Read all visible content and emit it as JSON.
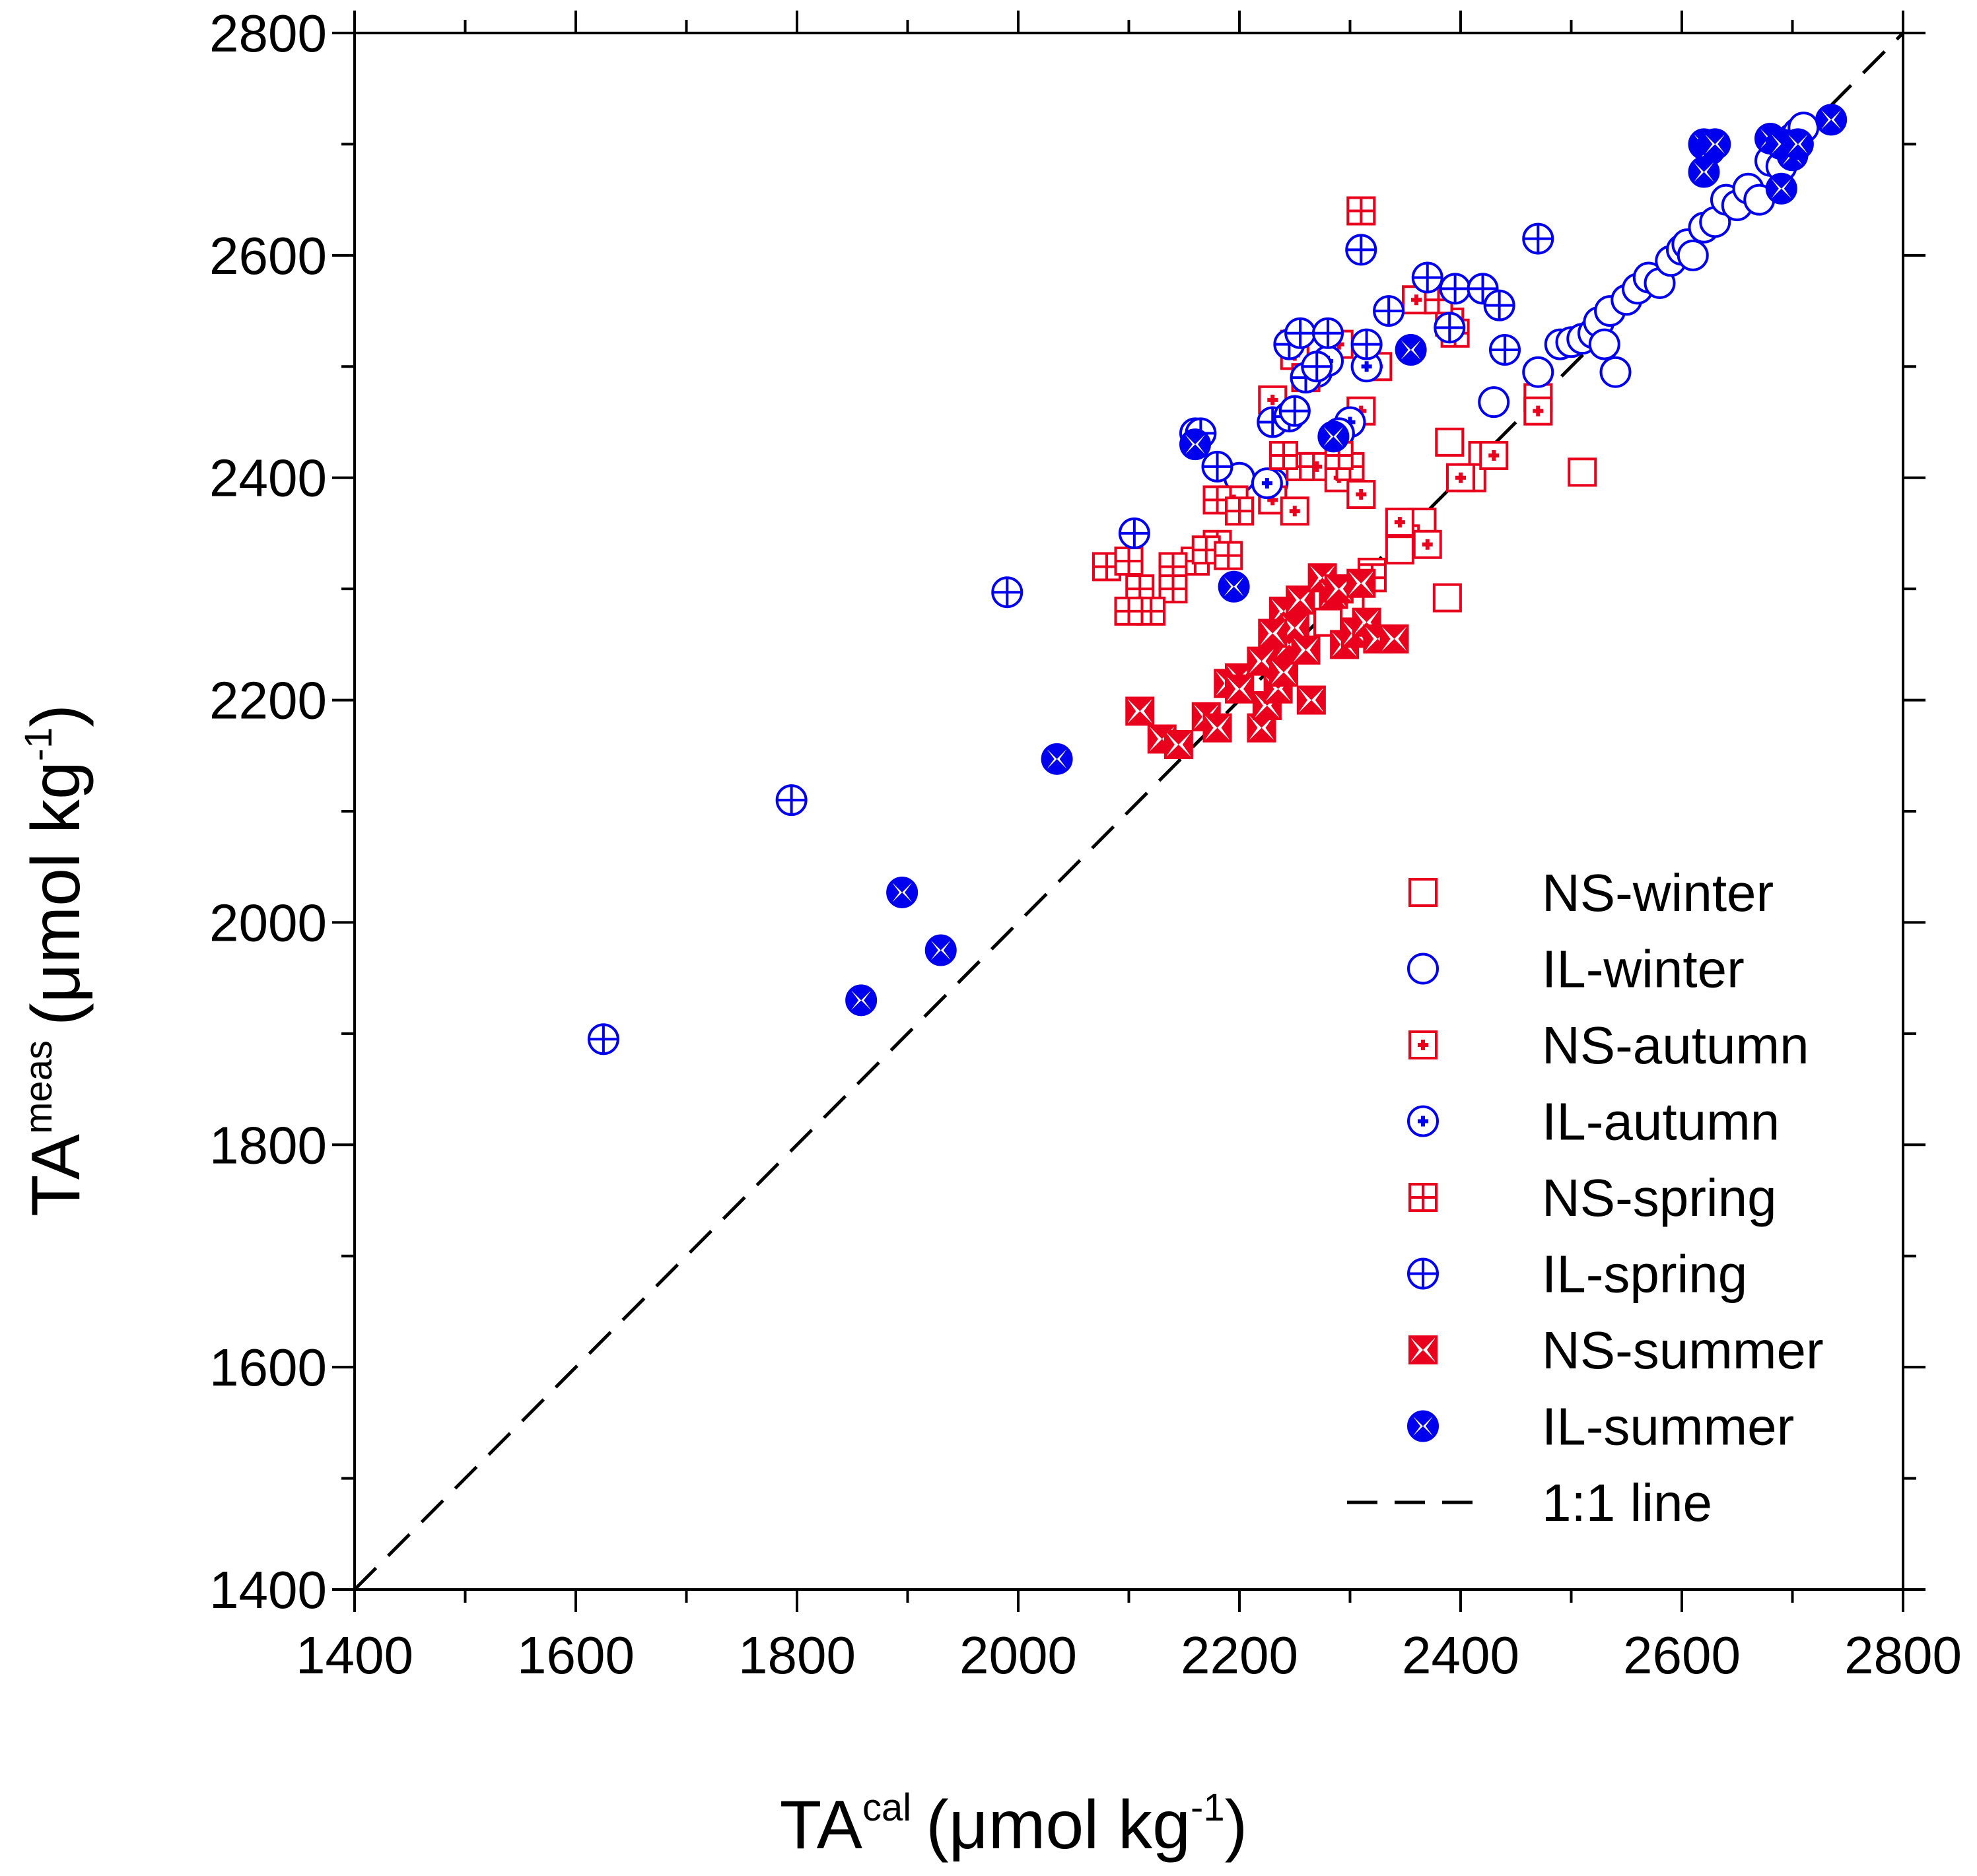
{
  "chart_data": {
    "type": "scatter",
    "title": "",
    "xlabel": {
      "base": "TA",
      "sup": "cal",
      "unit": "(μmol kg",
      "unit_sup": "-1",
      "close": ")"
    },
    "ylabel": {
      "base": "TA",
      "sup": "meas",
      "unit": "(μmol kg",
      "unit_sup": "-1",
      "close": ")"
    },
    "xlim": [
      1400,
      2800
    ],
    "ylim": [
      1400,
      2800
    ],
    "x_ticks": [
      "1400",
      "1600",
      "1800",
      "2000",
      "2200",
      "2400",
      "2600",
      "2800"
    ],
    "y_ticks": [
      "1400",
      "1600",
      "1800",
      "2000",
      "2200",
      "2400",
      "2600",
      "2800"
    ],
    "grid": false,
    "legend_position": "bottom-right",
    "colors": {
      "NS": "#e8001c",
      "IL": "#0000ee",
      "line": "#000000"
    },
    "series": [
      {
        "name": "NS-winter",
        "marker": "square-open",
        "color": "#e8001c",
        "points": [
          [
            2390,
            2432
          ],
          [
            2510,
            2405
          ],
          [
            2388,
            2292
          ],
          [
            2365,
            2360
          ],
          [
            2420,
            2420
          ],
          [
            2470,
            2472
          ],
          [
            2300,
            2285
          ],
          [
            2350,
            2345
          ],
          [
            2320,
            2315
          ],
          [
            2280,
            2270
          ],
          [
            2410,
            2400
          ],
          [
            2345,
            2335
          ]
        ]
      },
      {
        "name": "IL-winter",
        "marker": "circle-open",
        "color": "#0000ee",
        "points": [
          [
            2430,
            2468
          ],
          [
            2470,
            2495
          ],
          [
            2490,
            2520
          ],
          [
            2500,
            2522
          ],
          [
            2510,
            2525
          ],
          [
            2520,
            2530
          ],
          [
            2525,
            2540
          ],
          [
            2530,
            2520
          ],
          [
            2535,
            2550
          ],
          [
            2540,
            2495
          ],
          [
            2550,
            2560
          ],
          [
            2560,
            2570
          ],
          [
            2570,
            2580
          ],
          [
            2580,
            2575
          ],
          [
            2590,
            2595
          ],
          [
            2600,
            2605
          ],
          [
            2605,
            2610
          ],
          [
            2610,
            2600
          ],
          [
            2620,
            2625
          ],
          [
            2630,
            2630
          ],
          [
            2640,
            2650
          ],
          [
            2650,
            2645
          ],
          [
            2660,
            2660
          ],
          [
            2670,
            2650
          ],
          [
            2680,
            2685
          ],
          [
            2690,
            2680
          ],
          [
            2695,
            2700
          ],
          [
            2700,
            2705
          ],
          [
            2705,
            2710
          ],
          [
            2710,
            2715
          ],
          [
            2200,
            2400
          ],
          [
            2230,
            2395
          ]
        ]
      },
      {
        "name": "NS-autumn",
        "marker": "square-cross",
        "color": "#e8001c",
        "points": [
          [
            2310,
            2460
          ],
          [
            2390,
            2540
          ],
          [
            2360,
            2560
          ],
          [
            2250,
            2520
          ],
          [
            2230,
            2470
          ],
          [
            2270,
            2410
          ],
          [
            2195,
            2380
          ],
          [
            2230,
            2380
          ],
          [
            2250,
            2370
          ],
          [
            2290,
            2400
          ],
          [
            2310,
            2385
          ],
          [
            2345,
            2360
          ],
          [
            2370,
            2340
          ],
          [
            2400,
            2400
          ],
          [
            2430,
            2420
          ],
          [
            2470,
            2460
          ],
          [
            2325,
            2500
          ],
          [
            2290,
            2520
          ],
          [
            2250,
            2510
          ]
        ]
      },
      {
        "name": "IL-autumn",
        "marker": "circle-cross",
        "color": "#0000ee",
        "points": [
          [
            2160,
            2440
          ],
          [
            2300,
            2450
          ],
          [
            2250,
            2460
          ],
          [
            2290,
            2440
          ],
          [
            2225,
            2395
          ],
          [
            2270,
            2495
          ],
          [
            2280,
            2505
          ],
          [
            2315,
            2500
          ],
          [
            2290,
            2440
          ]
        ]
      },
      {
        "name": "NS-spring",
        "marker": "square-grid",
        "color": "#e8001c",
        "points": [
          [
            2310,
            2640
          ],
          [
            2380,
            2560
          ],
          [
            2395,
            2530
          ],
          [
            2300,
            2410
          ],
          [
            2255,
            2410
          ],
          [
            2240,
            2420
          ],
          [
            2180,
            2380
          ],
          [
            2200,
            2370
          ],
          [
            2180,
            2340
          ],
          [
            2160,
            2325
          ],
          [
            2140,
            2320
          ],
          [
            2140,
            2300
          ],
          [
            2110,
            2300
          ],
          [
            2120,
            2280
          ],
          [
            2100,
            2280
          ],
          [
            2080,
            2320
          ],
          [
            2100,
            2325
          ],
          [
            2170,
            2335
          ],
          [
            2190,
            2330
          ],
          [
            2260,
            2490
          ],
          [
            2290,
            2420
          ],
          [
            2320,
            2310
          ],
          [
            2290,
            2300
          ]
        ]
      },
      {
        "name": "IL-spring",
        "marker": "circle-plus",
        "color": "#0000ee",
        "points": [
          [
            1625,
            1895
          ],
          [
            1795,
            2110
          ],
          [
            1990,
            2297
          ],
          [
            2105,
            2350
          ],
          [
            2165,
            2440
          ],
          [
            2180,
            2410
          ],
          [
            2230,
            2450
          ],
          [
            2245,
            2455
          ],
          [
            2245,
            2520
          ],
          [
            2255,
            2530
          ],
          [
            2260,
            2490
          ],
          [
            2270,
            2500
          ],
          [
            2280,
            2530
          ],
          [
            2310,
            2605
          ],
          [
            2315,
            2520
          ],
          [
            2335,
            2550
          ],
          [
            2370,
            2580
          ],
          [
            2395,
            2570
          ],
          [
            2420,
            2570
          ],
          [
            2435,
            2555
          ],
          [
            2440,
            2515
          ],
          [
            2470,
            2615
          ],
          [
            2390,
            2535
          ],
          [
            2250,
            2460
          ]
        ]
      },
      {
        "name": "NS-summer",
        "marker": "square-bowtie",
        "color": "#e8001c",
        "points": [
          [
            2110,
            2190
          ],
          [
            2130,
            2165
          ],
          [
            2145,
            2160
          ],
          [
            2170,
            2185
          ],
          [
            2180,
            2175
          ],
          [
            2190,
            2215
          ],
          [
            2200,
            2220
          ],
          [
            2220,
            2235
          ],
          [
            2220,
            2175
          ],
          [
            2225,
            2195
          ],
          [
            2235,
            2210
          ],
          [
            2240,
            2225
          ],
          [
            2245,
            2250
          ],
          [
            2240,
            2280
          ],
          [
            2250,
            2265
          ],
          [
            2255,
            2290
          ],
          [
            2265,
            2200
          ],
          [
            2275,
            2310
          ],
          [
            2285,
            2295
          ],
          [
            2290,
            2300
          ],
          [
            2295,
            2250
          ],
          [
            2305,
            2260
          ],
          [
            2310,
            2305
          ],
          [
            2315,
            2270
          ],
          [
            2325,
            2255
          ],
          [
            2340,
            2255
          ],
          [
            2200,
            2210
          ],
          [
            2230,
            2260
          ],
          [
            2260,
            2245
          ]
        ]
      },
      {
        "name": "IL-summer",
        "marker": "circle-bowtie",
        "color": "#0000ee",
        "points": [
          [
            1858,
            1930
          ],
          [
            1895,
            2027
          ],
          [
            1930,
            1975
          ],
          [
            2035,
            2147
          ],
          [
            2160,
            2430
          ],
          [
            2195,
            2302
          ],
          [
            2285,
            2437
          ],
          [
            2355,
            2515
          ],
          [
            2620,
            2700
          ],
          [
            2625,
            2695
          ],
          [
            2630,
            2700
          ],
          [
            2620,
            2675
          ],
          [
            2680,
            2705
          ],
          [
            2690,
            2700
          ],
          [
            2700,
            2690
          ],
          [
            2705,
            2700
          ],
          [
            2735,
            2722
          ],
          [
            2690,
            2660
          ]
        ]
      }
    ],
    "reference_line": {
      "name": "1:1 line",
      "style": "dashed",
      "from": [
        1400,
        1400
      ],
      "to": [
        2800,
        2800
      ]
    }
  }
}
